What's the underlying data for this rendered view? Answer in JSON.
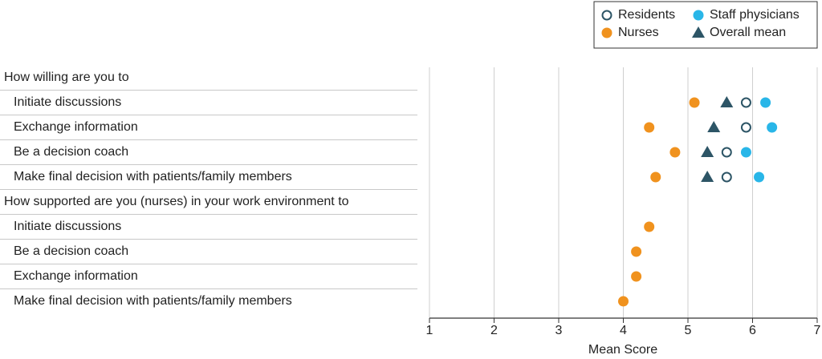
{
  "chart_data": {
    "type": "dot",
    "categories": [
      "How willing are you to",
      "Initiate discussions",
      "Exchange information",
      "Be a decision coach",
      "Make final decision with patients/family members",
      "How supported are you (nurses) in your work environment to",
      "Initiate discussions",
      "Be a decision coach",
      "Exchange information",
      "Make final decision with patients/family members"
    ],
    "series": [
      {
        "name": "Residents",
        "color": "#2d5566",
        "marker": "open-circle",
        "values": [
          null,
          5.9,
          5.9,
          5.6,
          5.6,
          null,
          null,
          null,
          null,
          null
        ]
      },
      {
        "name": "Staff physicians",
        "color": "#29b6e8",
        "marker": "circle",
        "values": [
          null,
          6.2,
          6.3,
          5.9,
          6.1,
          null,
          null,
          null,
          null,
          null
        ]
      },
      {
        "name": "Nurses",
        "color": "#f0921e",
        "marker": "circle",
        "values": [
          null,
          5.1,
          4.4,
          4.8,
          4.5,
          null,
          4.4,
          4.2,
          4.2,
          4.0
        ]
      },
      {
        "name": "Overall mean",
        "color": "#2d5566",
        "marker": "triangle",
        "values": [
          null,
          5.6,
          5.4,
          5.3,
          5.3,
          null,
          null,
          null,
          null,
          null
        ]
      }
    ],
    "xlabel": "Mean Score",
    "xlim": [
      1,
      7
    ],
    "xticks": [
      1,
      2,
      3,
      4,
      5,
      6,
      7
    ],
    "grid": true
  }
}
